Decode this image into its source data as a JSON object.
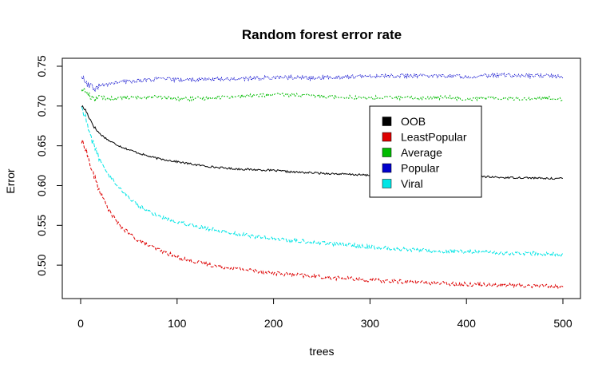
{
  "chart_data": {
    "type": "line",
    "title": "Random forest error rate",
    "xlabel": "trees",
    "ylabel": "Error",
    "xlim": [
      0,
      500
    ],
    "ylim": [
      0.46,
      0.75
    ],
    "x_ticks": [
      0,
      100,
      200,
      300,
      400,
      500
    ],
    "x_tick_labels": [
      "0",
      "100",
      "200",
      "300",
      "400",
      "500"
    ],
    "y_ticks": [
      0.5,
      0.55,
      0.6,
      0.65,
      0.7,
      0.75
    ],
    "y_tick_labels": [
      "0.50",
      "0.55",
      "0.60",
      "0.65",
      "0.70",
      "0.75"
    ],
    "grid": false,
    "legend": {
      "placement": "right",
      "entries": [
        "OOB",
        "LeastPopular",
        "Average",
        "Popular",
        "Viral"
      ]
    },
    "series": [
      {
        "name": "OOB",
        "color": "#000000",
        "x": [
          1,
          5,
          10,
          15,
          20,
          30,
          40,
          50,
          60,
          70,
          80,
          90,
          100,
          120,
          140,
          160,
          180,
          200,
          220,
          240,
          260,
          280,
          300,
          320,
          340,
          360,
          380,
          400,
          420,
          440,
          460,
          480,
          500
        ],
        "values": [
          0.7,
          0.695,
          0.683,
          0.672,
          0.665,
          0.656,
          0.65,
          0.645,
          0.641,
          0.637,
          0.634,
          0.632,
          0.63,
          0.626,
          0.623,
          0.621,
          0.62,
          0.619,
          0.617,
          0.616,
          0.615,
          0.614,
          0.613,
          0.613,
          0.612,
          0.612,
          0.611,
          0.611,
          0.611,
          0.61,
          0.61,
          0.609,
          0.609
        ]
      },
      {
        "name": "LeastPopular",
        "color": "#dd0000",
        "x": [
          1,
          5,
          10,
          15,
          20,
          30,
          40,
          50,
          60,
          70,
          80,
          90,
          100,
          120,
          140,
          160,
          180,
          200,
          220,
          240,
          260,
          280,
          300,
          320,
          340,
          360,
          380,
          400,
          420,
          440,
          460,
          480,
          500
        ],
        "values": [
          0.655,
          0.648,
          0.625,
          0.608,
          0.592,
          0.568,
          0.55,
          0.54,
          0.531,
          0.525,
          0.52,
          0.515,
          0.51,
          0.504,
          0.499,
          0.496,
          0.493,
          0.49,
          0.488,
          0.486,
          0.484,
          0.483,
          0.481,
          0.48,
          0.479,
          0.478,
          0.477,
          0.476,
          0.476,
          0.475,
          0.474,
          0.474,
          0.473
        ]
      },
      {
        "name": "Average",
        "color": "#00bb00",
        "x": [
          1,
          5,
          10,
          15,
          20,
          30,
          40,
          50,
          60,
          70,
          80,
          90,
          100,
          120,
          140,
          160,
          180,
          200,
          220,
          240,
          260,
          280,
          300,
          320,
          340,
          360,
          380,
          400,
          420,
          440,
          460,
          480,
          500
        ],
        "values": [
          0.722,
          0.718,
          0.712,
          0.71,
          0.711,
          0.709,
          0.71,
          0.711,
          0.71,
          0.712,
          0.711,
          0.71,
          0.709,
          0.709,
          0.711,
          0.712,
          0.713,
          0.714,
          0.714,
          0.713,
          0.712,
          0.711,
          0.71,
          0.711,
          0.71,
          0.71,
          0.711,
          0.709,
          0.71,
          0.71,
          0.709,
          0.71,
          0.709
        ]
      },
      {
        "name": "Popular",
        "color": "#0000cc",
        "x": [
          1,
          5,
          10,
          15,
          20,
          30,
          40,
          50,
          60,
          70,
          80,
          90,
          100,
          120,
          140,
          160,
          180,
          200,
          220,
          240,
          260,
          280,
          300,
          320,
          340,
          360,
          380,
          400,
          420,
          440,
          460,
          480,
          500
        ],
        "values": [
          0.738,
          0.728,
          0.724,
          0.722,
          0.725,
          0.728,
          0.73,
          0.731,
          0.732,
          0.733,
          0.734,
          0.734,
          0.733,
          0.733,
          0.734,
          0.734,
          0.735,
          0.736,
          0.736,
          0.735,
          0.736,
          0.737,
          0.737,
          0.738,
          0.738,
          0.738,
          0.738,
          0.737,
          0.738,
          0.739,
          0.738,
          0.738,
          0.737
        ]
      },
      {
        "name": "Viral",
        "color": "#00e5e5",
        "x": [
          1,
          5,
          10,
          15,
          20,
          30,
          40,
          50,
          60,
          70,
          80,
          90,
          100,
          120,
          140,
          160,
          180,
          200,
          220,
          240,
          260,
          280,
          300,
          320,
          340,
          360,
          380,
          400,
          420,
          440,
          460,
          480,
          500
        ],
        "values": [
          0.7,
          0.685,
          0.662,
          0.648,
          0.632,
          0.612,
          0.598,
          0.585,
          0.575,
          0.568,
          0.562,
          0.558,
          0.555,
          0.549,
          0.544,
          0.54,
          0.536,
          0.533,
          0.531,
          0.529,
          0.527,
          0.525,
          0.523,
          0.521,
          0.52,
          0.518,
          0.517,
          0.517,
          0.516,
          0.515,
          0.515,
          0.514,
          0.513
        ]
      }
    ]
  }
}
